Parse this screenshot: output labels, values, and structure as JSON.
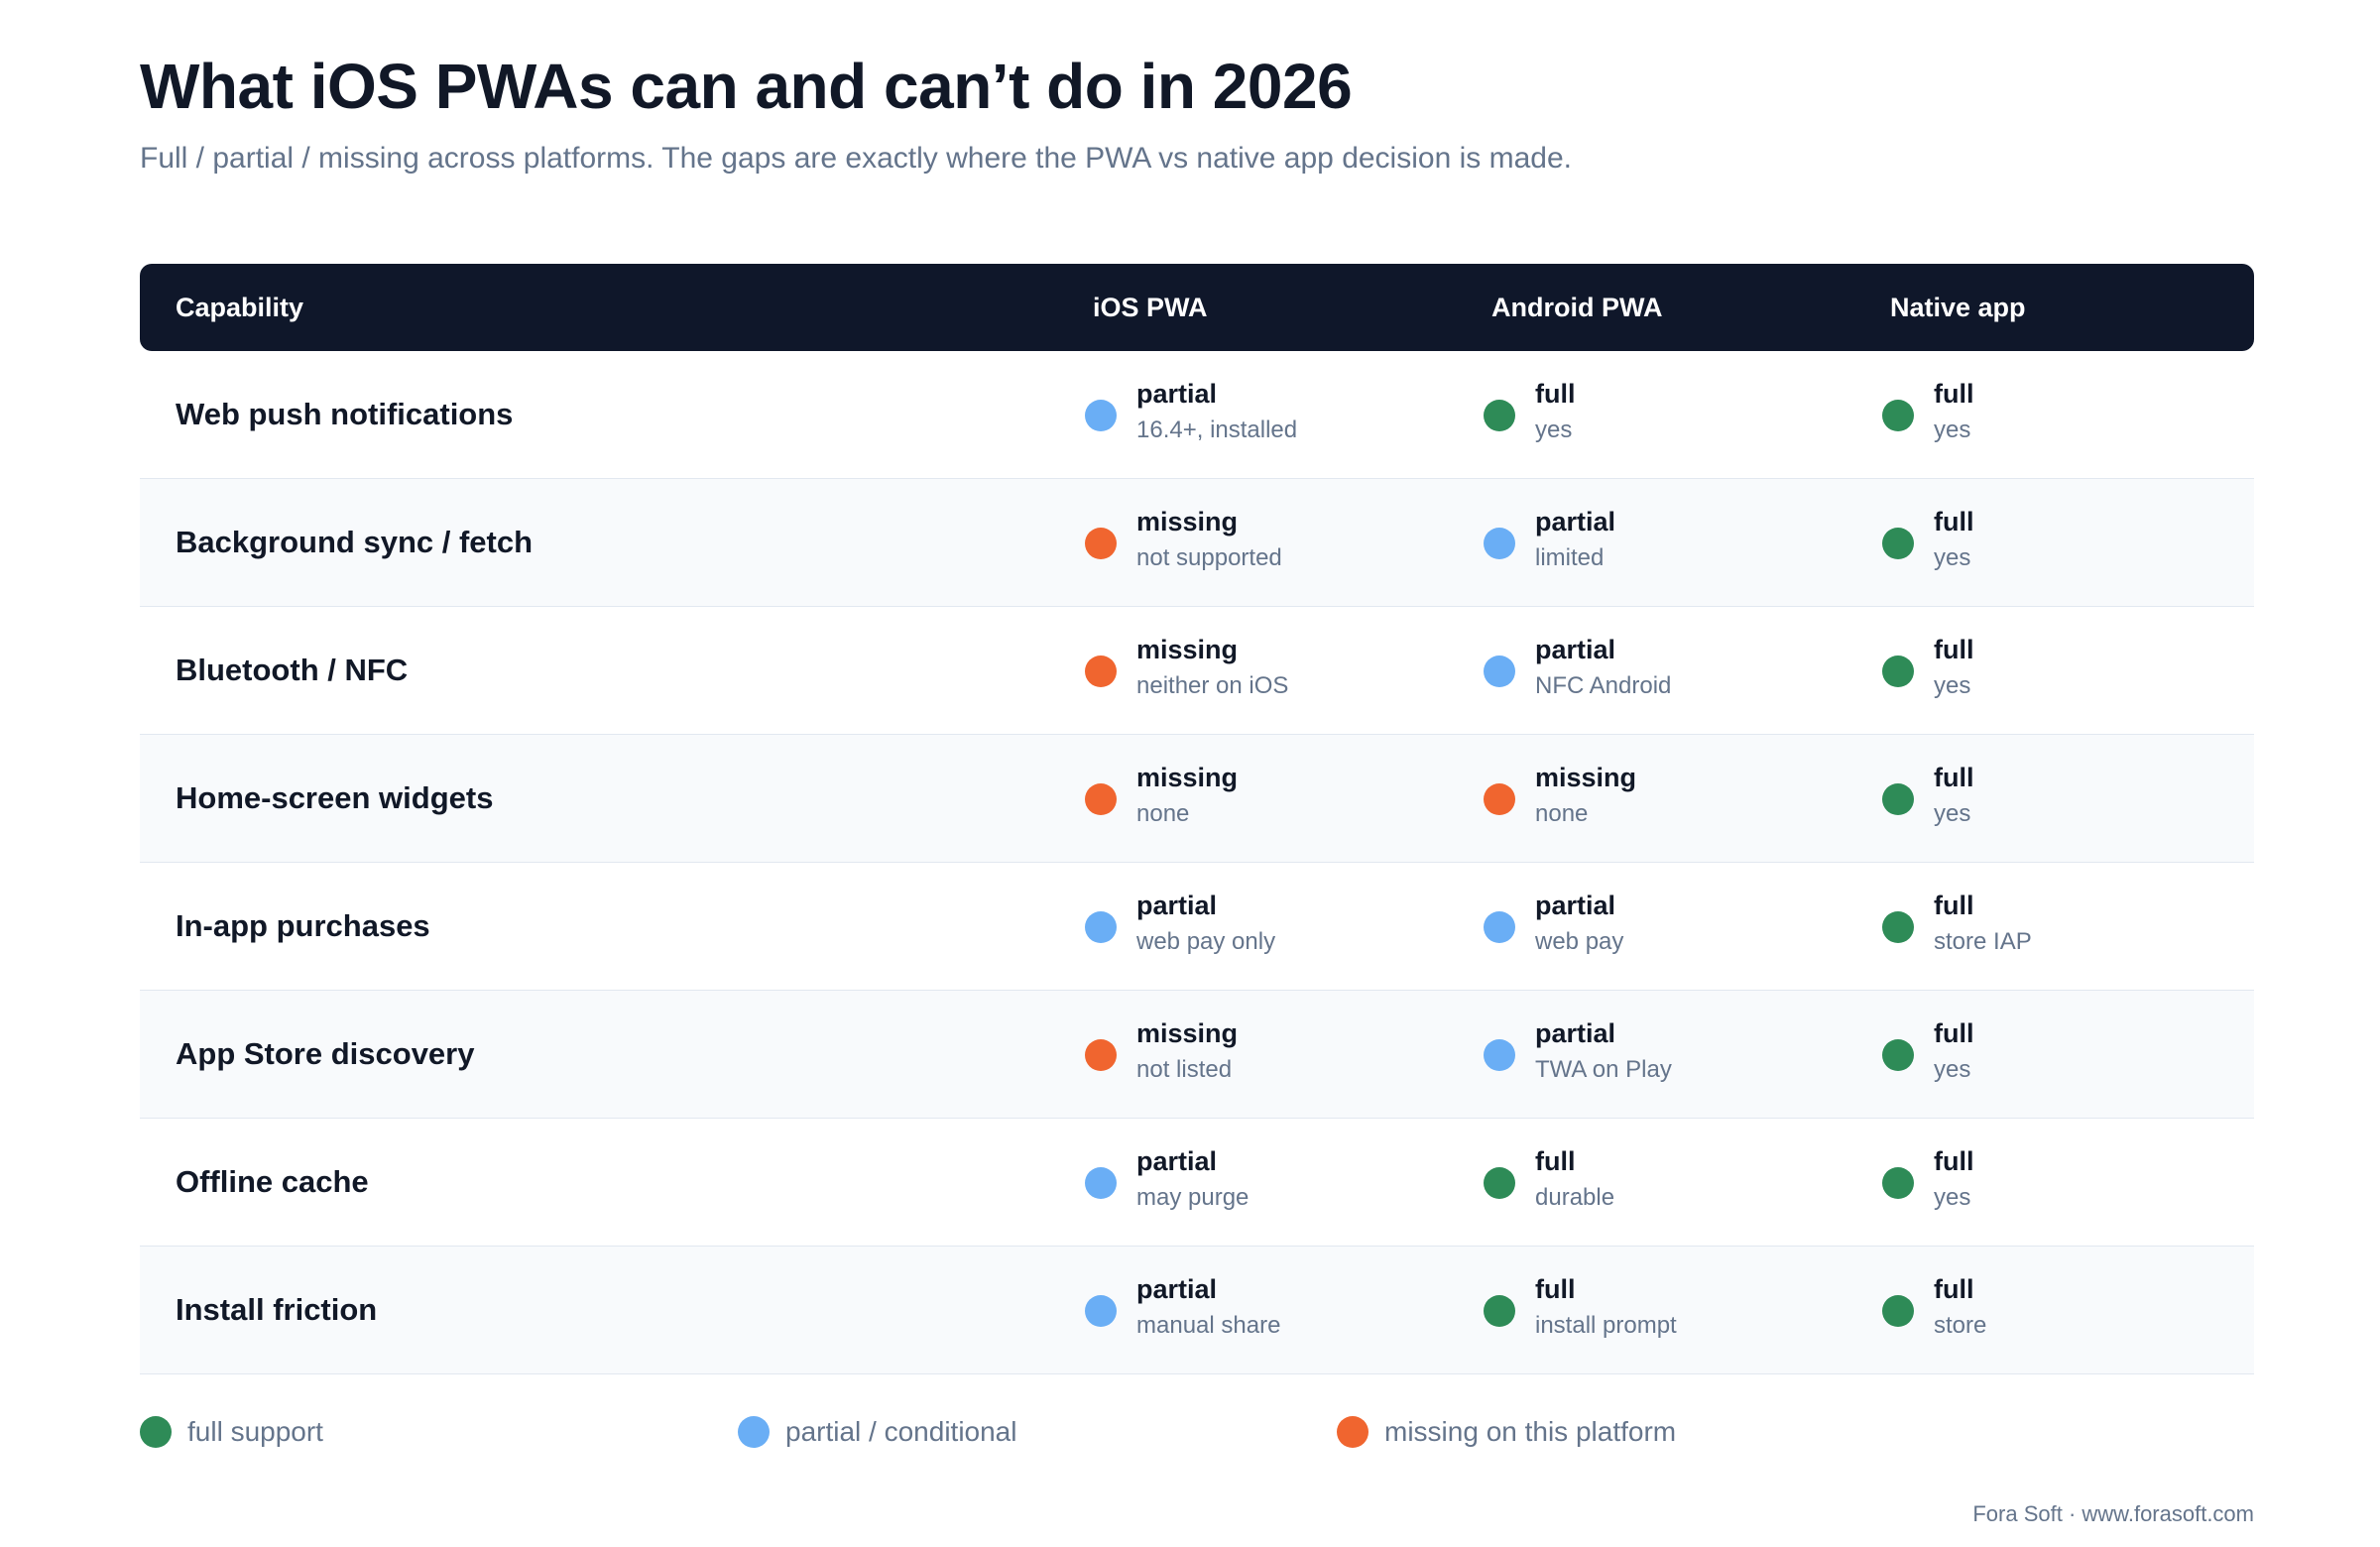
{
  "title": "What iOS PWAs can and can’t do in 2026",
  "subtitle": "Full / partial / missing across platforms. The gaps are exactly where the PWA vs native app decision is made.",
  "colors": {
    "full": "#2e8b57",
    "partial": "#6aaef5",
    "missing": "#f0652f",
    "header_bg": "#0f172a"
  },
  "table": {
    "headers": [
      "Capability",
      "iOS PWA",
      "Android PWA",
      "Native app"
    ],
    "rows": [
      {
        "capability": "Web push notifications",
        "cells": [
          {
            "level": "partial",
            "note": "16.4+, installed"
          },
          {
            "level": "full",
            "note": "yes"
          },
          {
            "level": "full",
            "note": "yes"
          }
        ]
      },
      {
        "capability": "Background sync / fetch",
        "cells": [
          {
            "level": "missing",
            "note": "not supported"
          },
          {
            "level": "partial",
            "note": "limited"
          },
          {
            "level": "full",
            "note": "yes"
          }
        ]
      },
      {
        "capability": "Bluetooth / NFC",
        "cells": [
          {
            "level": "missing",
            "note": "neither on iOS"
          },
          {
            "level": "partial",
            "note": "NFC Android"
          },
          {
            "level": "full",
            "note": "yes"
          }
        ]
      },
      {
        "capability": "Home-screen widgets",
        "cells": [
          {
            "level": "missing",
            "note": "none"
          },
          {
            "level": "missing",
            "note": "none"
          },
          {
            "level": "full",
            "note": "yes"
          }
        ]
      },
      {
        "capability": "In-app purchases",
        "cells": [
          {
            "level": "partial",
            "note": "web pay only"
          },
          {
            "level": "partial",
            "note": "web pay"
          },
          {
            "level": "full",
            "note": "store IAP"
          }
        ]
      },
      {
        "capability": "App Store discovery",
        "cells": [
          {
            "level": "missing",
            "note": "not listed"
          },
          {
            "level": "partial",
            "note": "TWA on Play"
          },
          {
            "level": "full",
            "note": "yes"
          }
        ]
      },
      {
        "capability": "Offline cache",
        "cells": [
          {
            "level": "partial",
            "note": "may purge"
          },
          {
            "level": "full",
            "note": "durable"
          },
          {
            "level": "full",
            "note": "yes"
          }
        ]
      },
      {
        "capability": "Install friction",
        "cells": [
          {
            "level": "partial",
            "note": "manual share"
          },
          {
            "level": "full",
            "note": "install prompt"
          },
          {
            "level": "full",
            "note": "store"
          }
        ]
      }
    ]
  },
  "legend": [
    {
      "level": "full",
      "label": "full support"
    },
    {
      "level": "partial",
      "label": "partial / conditional"
    },
    {
      "level": "missing",
      "label": "missing on this platform"
    }
  ],
  "footer": "Fora Soft · www.forasoft.com"
}
